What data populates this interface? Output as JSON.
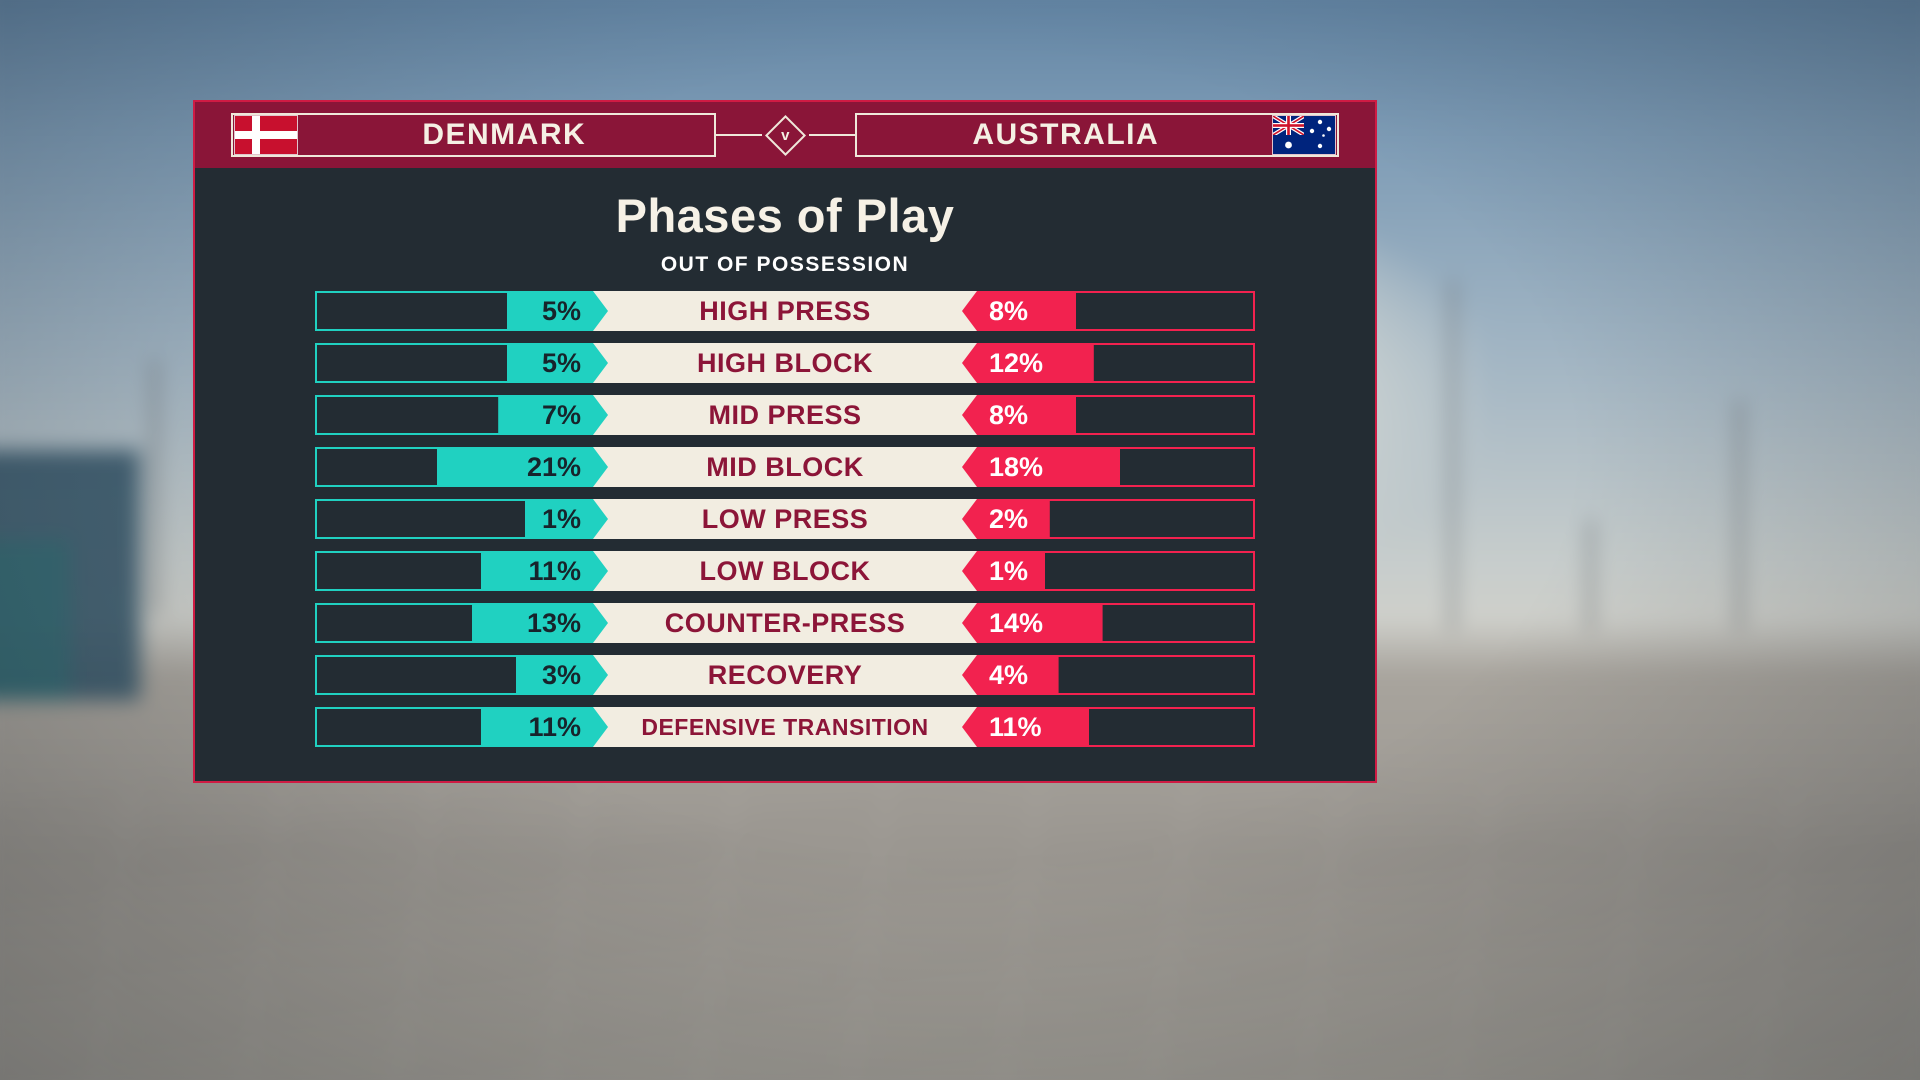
{
  "header": {
    "home": {
      "name": "DENMARK"
    },
    "away": {
      "name": "AUSTRALIA"
    },
    "versus": "v"
  },
  "panel": {
    "title": "Phases of Play",
    "subtitle": "OUT OF POSSESSION"
  },
  "chart_data": {
    "type": "bar",
    "layout": "horizontal-diverging",
    "title": "Phases of Play",
    "subtitle": "OUT OF POSSESSION",
    "value_format": "percent",
    "categories": [
      "HIGH PRESS",
      "HIGH BLOCK",
      "MID PRESS",
      "MID BLOCK",
      "LOW PRESS",
      "LOW BLOCK",
      "COUNTER-PRESS",
      "RECOVERY",
      "DEFENSIVE TRANSITION"
    ],
    "series": [
      {
        "name": "DENMARK",
        "color": "#20d1c1",
        "unit": "%",
        "values": [
          5,
          5,
          7,
          21,
          1,
          11,
          13,
          3,
          11
        ]
      },
      {
        "name": "AUSTRALIA",
        "color": "#f2224f",
        "unit": "%",
        "values": [
          8,
          12,
          8,
          18,
          2,
          1,
          14,
          4,
          11
        ]
      }
    ]
  },
  "colors": {
    "header_maroon": "#8a1538",
    "cream": "#f2ede1",
    "teal": "#20d1c1",
    "pink": "#f2224f",
    "panel_dark": "#232c33",
    "border_red": "#cf1b44"
  }
}
